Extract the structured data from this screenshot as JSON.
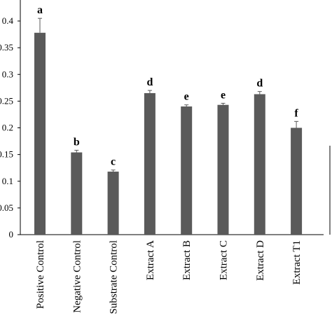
{
  "chart_data": {
    "type": "bar",
    "title": "",
    "xlabel": "",
    "ylabel": "",
    "ylim": [
      0,
      0.45
    ],
    "yticks": [
      "0",
      "0.05",
      "0.1",
      "0.15",
      "0.2",
      "0.25",
      "0.3",
      "0.35",
      "0.4"
    ],
    "ytick_values": [
      0,
      0.05,
      0.1,
      0.15,
      0.2,
      0.25,
      0.3,
      0.35,
      0.4
    ],
    "grid": false,
    "legend": "none",
    "bar_color": "#5a5a5a",
    "categories": [
      "Positive Control",
      "Negative Control",
      "Substrate Control",
      "Extract  A",
      "Extract  B",
      "Extract  C",
      "Extract  D",
      "Extract  T1"
    ],
    "values": [
      0.378,
      0.154,
      0.118,
      0.265,
      0.24,
      0.243,
      0.263,
      0.2
    ],
    "errors": [
      0.027,
      0.004,
      0.003,
      0.005,
      0.003,
      0.003,
      0.005,
      0.012
    ],
    "significance_letters": [
      "a",
      "b",
      "c",
      "d",
      "e",
      "e",
      "d",
      "f"
    ]
  }
}
